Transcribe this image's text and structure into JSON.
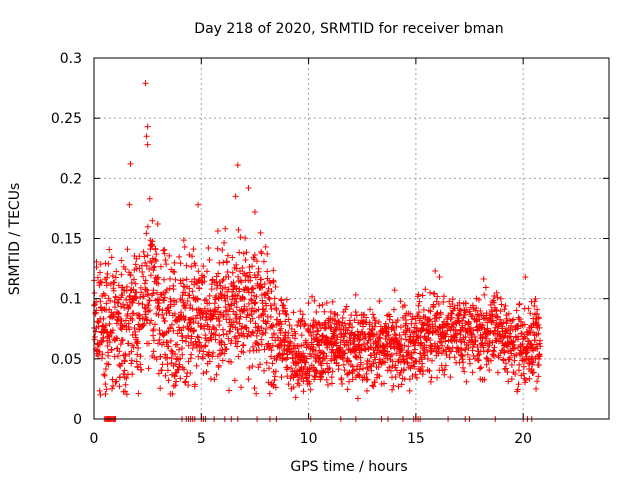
{
  "chart_data": {
    "type": "scatter",
    "title": "Day 218 of 2020, SRMTID for receiver bman",
    "xlabel": "GPS time / hours",
    "ylabel": "SRMTID / TECUs",
    "xlim": [
      0,
      24
    ],
    "ylim": [
      0,
      0.3
    ],
    "xticks": [
      0,
      5,
      10,
      15,
      20
    ],
    "yticks": [
      0,
      0.05,
      0.1,
      0.15,
      0.2,
      0.25,
      0.3
    ],
    "xtick_labels": [
      "0",
      "5",
      "10",
      "15",
      "20"
    ],
    "ytick_labels": [
      "0",
      "0.05",
      "0.1",
      "0.15",
      "0.2",
      "0.25",
      "0.3"
    ],
    "grid": true,
    "marker": "+",
    "series": [
      {
        "name": "SRMTID",
        "color": "#ff0000",
        "x_range": [
          0.0,
          20.8
        ],
        "highlights": [
          {
            "x": 2.4,
            "y": 0.279
          },
          {
            "x": 2.5,
            "y": 0.243
          },
          {
            "x": 2.45,
            "y": 0.235
          },
          {
            "x": 2.5,
            "y": 0.228
          },
          {
            "x": 1.7,
            "y": 0.212
          },
          {
            "x": 6.7,
            "y": 0.211
          },
          {
            "x": 7.2,
            "y": 0.192
          },
          {
            "x": 6.6,
            "y": 0.185
          },
          {
            "x": 4.85,
            "y": 0.178
          },
          {
            "x": 1.65,
            "y": 0.178
          },
          {
            "x": 2.6,
            "y": 0.183
          },
          {
            "x": 7.5,
            "y": 0.172
          },
          {
            "x": 8.0,
            "y": 0.143
          },
          {
            "x": 11.2,
            "y": 0.073
          },
          {
            "x": 15.9,
            "y": 0.123
          },
          {
            "x": 16.1,
            "y": 0.118
          },
          {
            "x": 20.1,
            "y": 0.118
          },
          {
            "x": 12.3,
            "y": 0.017
          },
          {
            "x": 9.4,
            "y": 0.018
          },
          {
            "x": 0.3,
            "y": 0.02
          },
          {
            "x": 20.6,
            "y": 0.025
          }
        ],
        "zero_x": [
          0.5,
          0.55,
          0.6,
          0.65,
          0.7,
          0.75,
          0.8,
          0.85,
          0.9,
          0.95,
          1.0,
          4.1,
          4.3,
          4.4,
          4.5,
          4.6,
          4.7,
          5.0,
          5.1,
          5.2,
          5.6,
          6.1,
          6.4,
          6.7,
          7.6,
          8.2,
          8.5,
          10.1,
          11.5,
          12.2,
          13.4,
          13.7,
          14.4,
          14.9,
          15.0,
          15.1,
          15.2,
          16.5,
          17.3,
          17.5,
          18.7,
          20.0,
          20.2,
          20.4
        ]
      }
    ]
  }
}
